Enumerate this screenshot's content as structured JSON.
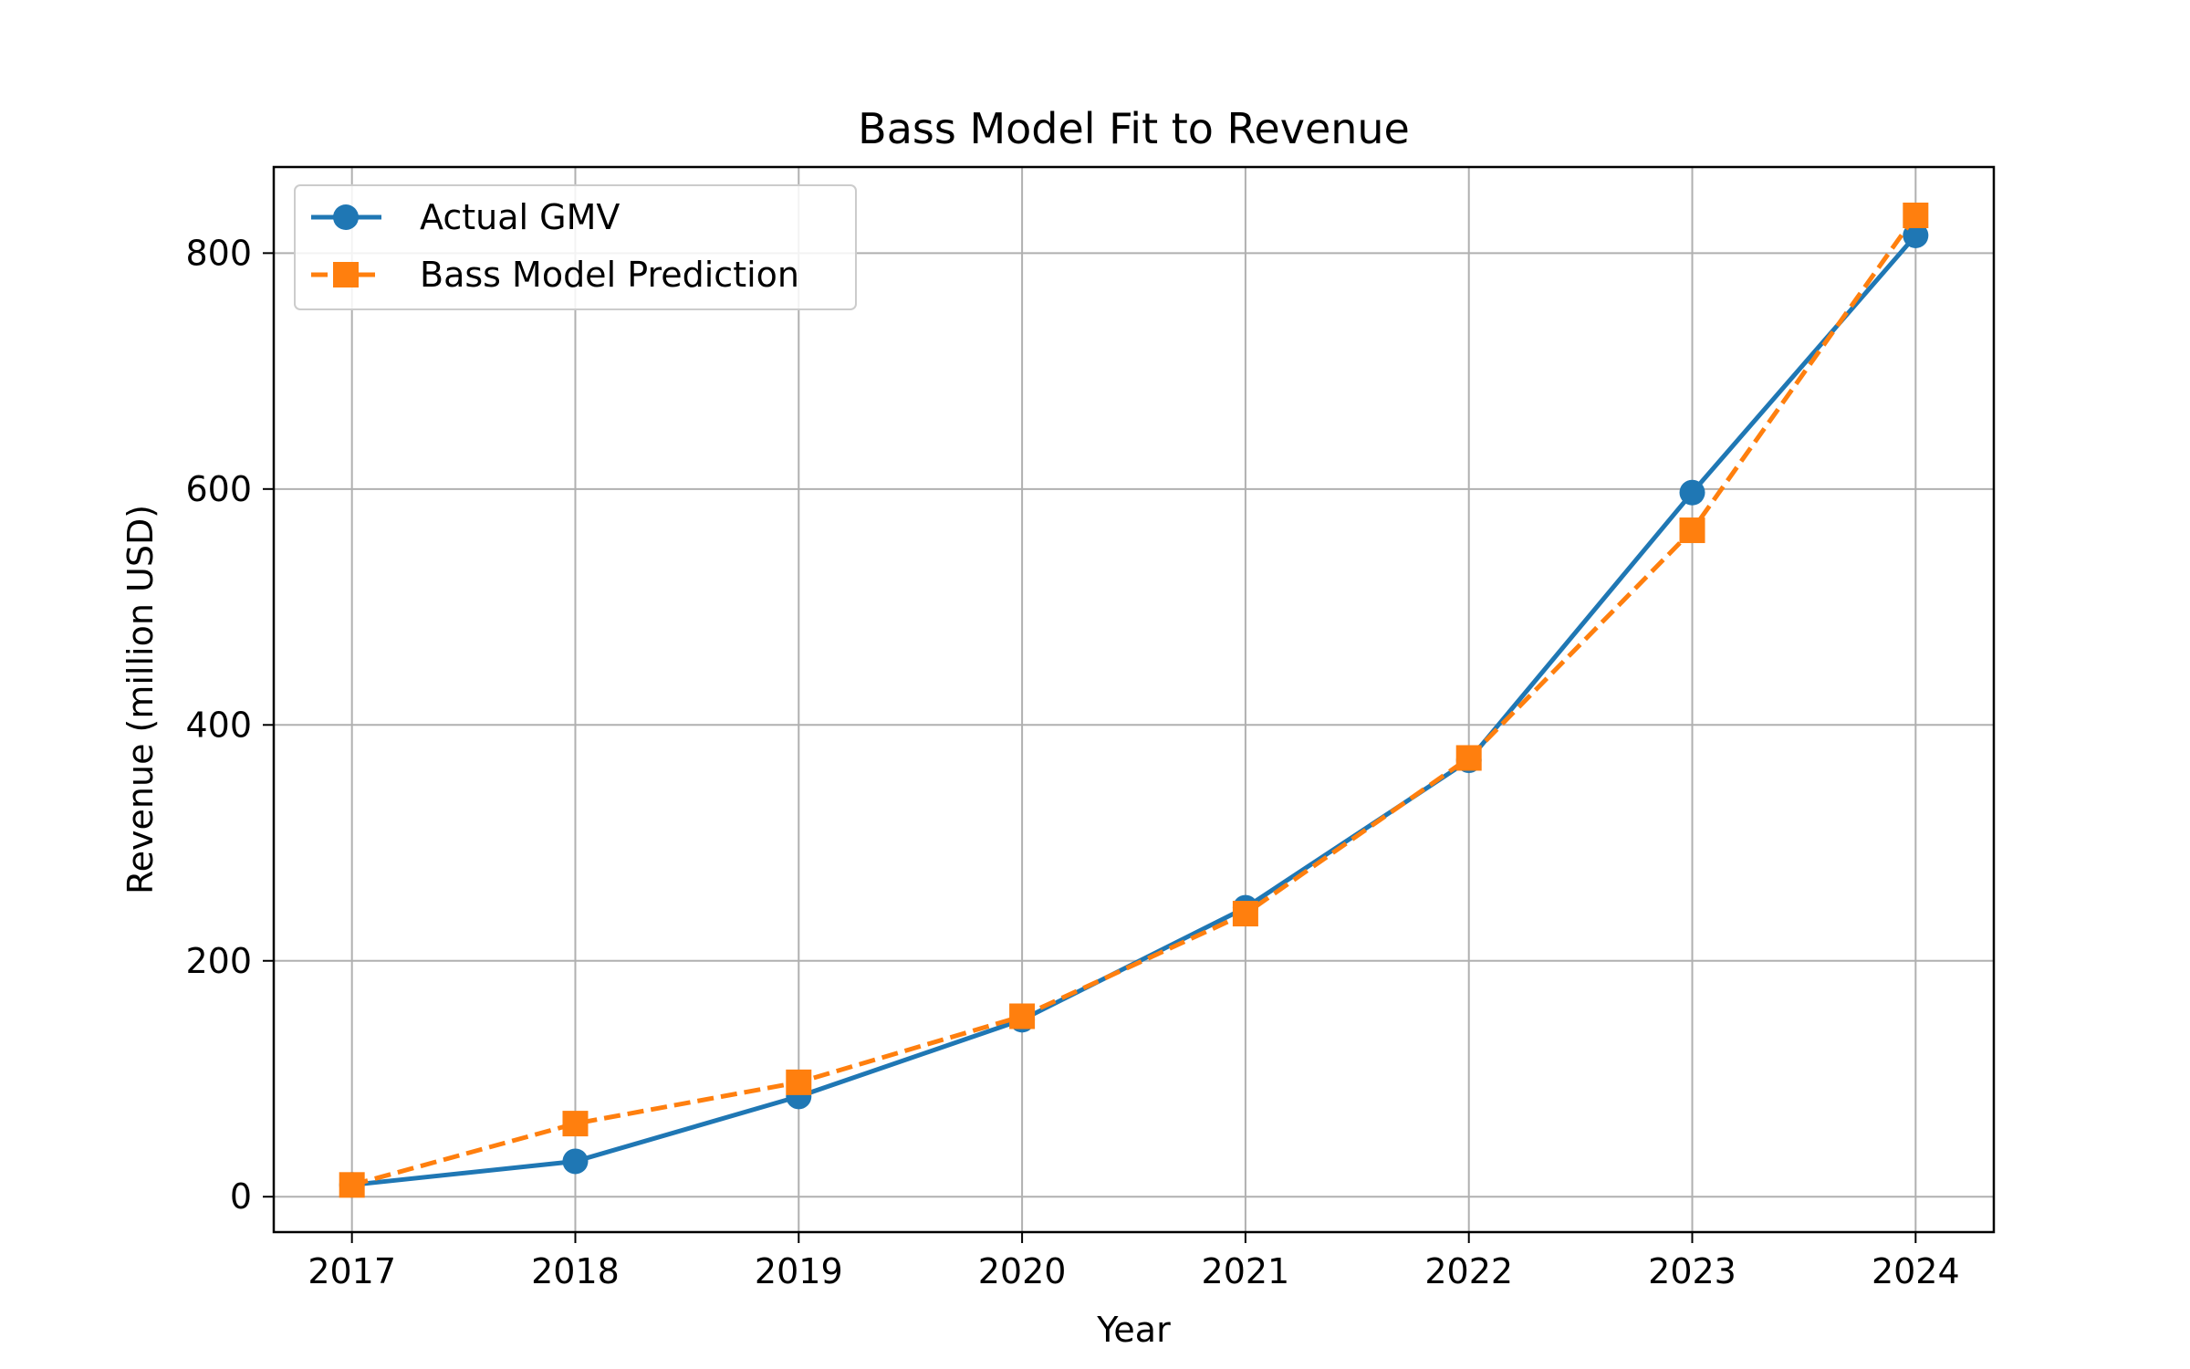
{
  "chart_data": {
    "type": "line",
    "title": "Bass Model Fit to Revenue",
    "xlabel": "Year",
    "ylabel": "Revenue (million USD)",
    "x": [
      2017,
      2018,
      2019,
      2020,
      2021,
      2022,
      2023,
      2024
    ],
    "xlim": [
      2016.65,
      2024.35
    ],
    "ylim": [
      -30,
      873
    ],
    "yticks": [
      0,
      200,
      400,
      600,
      800
    ],
    "grid": true,
    "legend_position": "top-left",
    "series": [
      {
        "name": "Actual GMV",
        "color": "#1f77b4",
        "marker": "circle",
        "line_style": "solid",
        "values": [
          10,
          30,
          85,
          150,
          245,
          370,
          597,
          815
        ]
      },
      {
        "name": "Bass Model Prediction",
        "color": "#ff7f0e",
        "marker": "square",
        "line_style": "dashed",
        "values": [
          10,
          62,
          97,
          153,
          240,
          372,
          565,
          832
        ]
      }
    ]
  }
}
